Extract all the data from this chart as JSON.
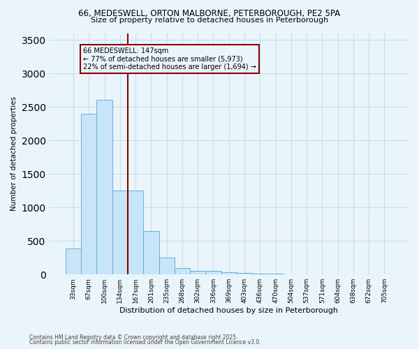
{
  "title1": "66, MEDESWELL, ORTON MALBORNE, PETERBOROUGH, PE2 5PA",
  "title2": "Size of property relative to detached houses in Peterborough",
  "xlabel": "Distribution of detached houses by size in Peterborough",
  "ylabel": "Number of detached properties",
  "categories": [
    "33sqm",
    "67sqm",
    "100sqm",
    "134sqm",
    "167sqm",
    "201sqm",
    "235sqm",
    "268sqm",
    "302sqm",
    "336sqm",
    "369sqm",
    "403sqm",
    "436sqm",
    "470sqm",
    "504sqm",
    "537sqm",
    "571sqm",
    "604sqm",
    "638sqm",
    "672sqm",
    "705sqm"
  ],
  "values": [
    390,
    2400,
    2610,
    1250,
    1250,
    650,
    255,
    100,
    58,
    50,
    38,
    28,
    12,
    8,
    5,
    4,
    3,
    2,
    1,
    1,
    1
  ],
  "bar_color": "#c8e4f8",
  "bar_edge_color": "#6baed6",
  "vline_x_idx": 3.5,
  "annotation_line1": "66 MEDESWELL: 147sqm",
  "annotation_line2": "← 77% of detached houses are smaller (5,973)",
  "annotation_line3": "22% of semi-detached houses are larger (1,694) →",
  "ylim": [
    0,
    3600
  ],
  "yticks": [
    0,
    500,
    1000,
    1500,
    2000,
    2500,
    3000,
    3500
  ],
  "footer1": "Contains HM Land Registry data © Crown copyright and database right 2025.",
  "footer2": "Contains public sector information licensed under the Open Government Licence v3.0.",
  "bg_color": "#eaf4fb",
  "grid_color": "#c5dff0"
}
